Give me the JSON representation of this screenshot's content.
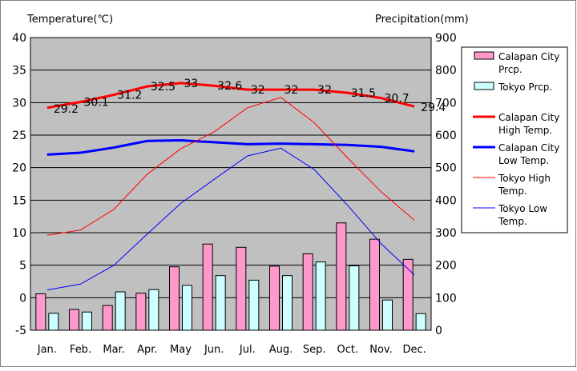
{
  "chart_data": {
    "type": "bar",
    "ylabel_left": "Temperature(℃)",
    "ylabel_right": "Precipitation(mm)",
    "categories": [
      "Jan.",
      "Feb.",
      "Mar.",
      "Apr.",
      "May",
      "Jun.",
      "Jul.",
      "Aug.",
      "Sep.",
      "Oct.",
      "Nov.",
      "Dec."
    ],
    "ylim_left": [
      -5,
      40
    ],
    "ylim_right": [
      0,
      900
    ],
    "yticks_left": [
      "40",
      "35",
      "30",
      "25",
      "20",
      "15",
      "10",
      "5",
      "0",
      "-5"
    ],
    "yticks_right": [
      "900",
      "800",
      "700",
      "600",
      "500",
      "400",
      "300",
      "200",
      "100",
      "0"
    ],
    "legend_position": "right",
    "bar_series": [
      {
        "name": "Calapan City Prcp.",
        "color": "#ff99cc",
        "values": [
          112,
          64,
          76,
          114,
          195,
          265,
          255,
          197,
          235,
          330,
          280,
          218
        ]
      },
      {
        "name": "Tokyo Prcp.",
        "color": "#ccffff",
        "values": [
          52,
          56,
          118,
          125,
          138,
          168,
          154,
          168,
          210,
          198,
          93,
          51
        ]
      }
    ],
    "line_series": [
      {
        "name": "Calapan City High Temp.",
        "color": "#ff0000",
        "width": "thick",
        "values": [
          29.2,
          30.1,
          31.2,
          32.5,
          33,
          32.6,
          32,
          32,
          32,
          31.5,
          30.7,
          29.4
        ],
        "labels": [
          "29.2",
          "30.1",
          "31.2",
          "32.5",
          "33",
          "32.6",
          "32",
          "32",
          "32",
          "31.5",
          "30.7",
          "29.4"
        ]
      },
      {
        "name": "Calapan City Low Temp.",
        "color": "#0000ff",
        "width": "thick",
        "values": [
          22.0,
          22.3,
          23.1,
          24.1,
          24.2,
          23.9,
          23.6,
          23.7,
          23.6,
          23.5,
          23.2,
          22.5
        ]
      },
      {
        "name": "Tokyo High Temp.",
        "color": "#ff0000",
        "width": "thin",
        "values": [
          9.6,
          10.4,
          13.6,
          19.0,
          22.9,
          25.5,
          29.2,
          30.8,
          26.9,
          21.5,
          16.3,
          11.9
        ]
      },
      {
        "name": "Tokyo Low Temp.",
        "color": "#0000ff",
        "width": "thin",
        "values": [
          1.2,
          2.1,
          5.0,
          9.8,
          14.5,
          18.2,
          21.8,
          23.0,
          19.7,
          14.2,
          8.3,
          3.5
        ]
      }
    ],
    "legend": [
      {
        "line1": "Calapan City",
        "line2": "Prcp."
      },
      {
        "line1": "Tokyo Prcp.",
        "line2": ""
      },
      {
        "line1": "Calapan City",
        "line2": "High Temp."
      },
      {
        "line1": "Calapan City",
        "line2": "Low Temp."
      },
      {
        "line1": "Tokyo High",
        "line2": "Temp."
      },
      {
        "line1": "Tokyo Low",
        "line2": "Temp."
      }
    ],
    "plot_background": "#c0c0c0",
    "grid": true
  }
}
